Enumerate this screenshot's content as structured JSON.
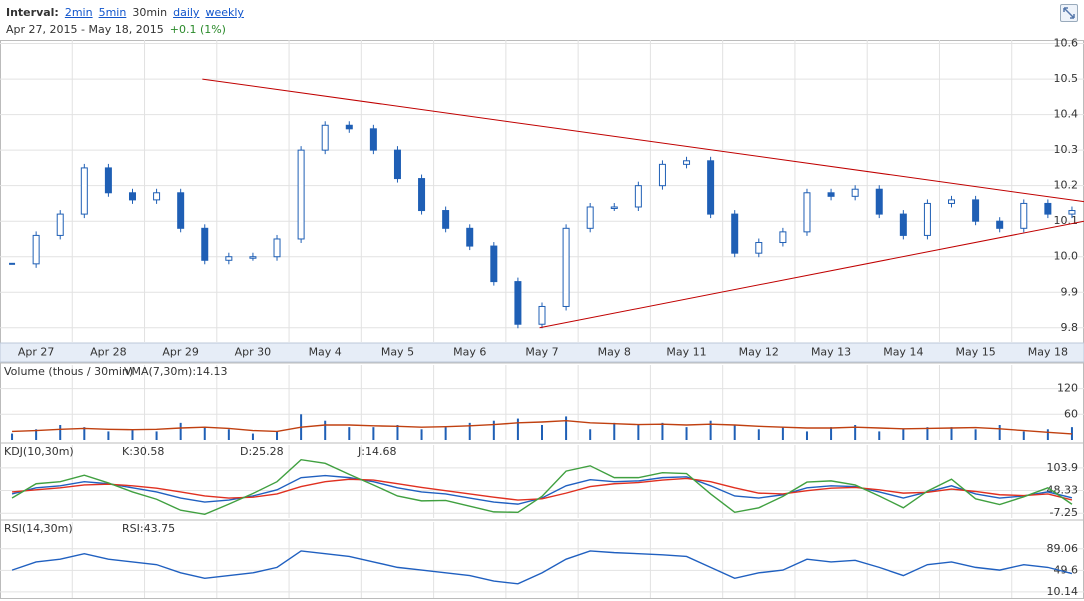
{
  "header": {
    "interval_label": "Interval:",
    "links": [
      "2min",
      "5min"
    ],
    "current": "30min",
    "links2": [
      "daily",
      "weekly"
    ],
    "start": "Apr 27, 2015",
    "sep": "-",
    "end": "May 18, 2015",
    "change": "+0.1 (1%)"
  },
  "chart_data": [
    {
      "type": "candlestick",
      "color": "#1f5fb5",
      "grid": true,
      "categories": [
        null,
        "Apr 27",
        null,
        null,
        "Apr 28",
        null,
        null,
        "Apr 29",
        null,
        null,
        "Apr 30",
        null,
        null,
        "May 4",
        null,
        null,
        "May 5",
        null,
        null,
        "May 6",
        null,
        null,
        "May 7",
        null,
        null,
        "May 8",
        null,
        null,
        "May 11",
        null,
        null,
        "May 12",
        null,
        null,
        "May 13",
        null,
        null,
        "May 14",
        null,
        null,
        "May 15",
        null,
        null,
        "May 18",
        null
      ],
      "values": [
        9.98,
        10.06,
        10.12,
        10.25,
        10.18,
        10.16,
        10.18,
        10.08,
        9.99,
        10.0,
        10.0,
        10.05,
        10.3,
        10.37,
        10.36,
        10.3,
        10.22,
        10.13,
        10.08,
        10.03,
        9.93,
        9.81,
        9.86,
        10.08,
        10.14,
        10.14,
        10.2,
        10.26,
        10.27,
        10.12,
        10.01,
        10.04,
        10.07,
        10.18,
        10.17,
        10.19,
        10.12,
        10.06,
        10.15,
        10.16,
        10.1,
        10.08,
        10.15,
        10.12,
        10.13
      ],
      "ylim": [
        9.76,
        10.61
      ],
      "yticks": [
        9.8,
        9.9,
        {
          "value": 10.0,
          "label": "10.0"
        },
        10.1,
        10.2,
        10.3,
        10.4,
        10.5,
        10.6
      ],
      "trendlines": [
        {
          "color": "#c00000",
          "x": [
            7.9,
            44.5
          ],
          "y": [
            10.5,
            10.155
          ]
        },
        {
          "color": "#c00000",
          "x": [
            21.9,
            44.5
          ],
          "y": [
            9.8,
            10.1
          ]
        }
      ]
    },
    {
      "type": "volume",
      "title": "Volume (thous / 30min)",
      "ylim": [
        0,
        175
      ],
      "yticks": [
        60,
        120
      ],
      "series": [
        {
          "name": "Volume",
          "color": "#1f5fb5",
          "values": [
            15,
            25,
            35,
            30,
            20,
            25,
            20,
            40,
            30,
            25,
            15,
            20,
            60,
            45,
            30,
            30,
            35,
            25,
            30,
            40,
            45,
            50,
            35,
            55,
            25,
            40,
            35,
            40,
            30,
            45,
            35,
            25,
            30,
            20,
            30,
            35,
            20,
            25,
            30,
            30,
            25,
            35,
            20,
            25,
            30
          ]
        },
        {
          "name": "VMA(7,30m):14.13",
          "color": "#c04010",
          "values": [
            20,
            22,
            25,
            27,
            25,
            24,
            25,
            28,
            30,
            27,
            22,
            20,
            30,
            35,
            35,
            33,
            32,
            30,
            31,
            33,
            36,
            40,
            42,
            45,
            40,
            38,
            36,
            37,
            35,
            37,
            35,
            32,
            30,
            28,
            28,
            30,
            28,
            26,
            27,
            28,
            29,
            26,
            22,
            18,
            14.13
          ]
        }
      ]
    },
    {
      "type": "line",
      "title": "KDJ(10,30m)",
      "ylim": [
        -19,
        160
      ],
      "yticks": [
        -7.25,
        48.33,
        103.9
      ],
      "series": [
        {
          "name": "K:30.58",
          "color": "#2060c0",
          "values": [
            40,
            55,
            60,
            70,
            65,
            55,
            45,
            30,
            20,
            25,
            35,
            50,
            80,
            85,
            80,
            70,
            55,
            45,
            40,
            30,
            20,
            15,
            30,
            60,
            75,
            70,
            72,
            80,
            82,
            60,
            35,
            30,
            38,
            55,
            60,
            58,
            45,
            30,
            45,
            60,
            40,
            30,
            35,
            45,
            30.58
          ]
        },
        {
          "name": "D:25.28",
          "color": "#e03020",
          "values": [
            45,
            50,
            55,
            62,
            64,
            60,
            54,
            45,
            35,
            30,
            32,
            40,
            58,
            70,
            76,
            74,
            65,
            56,
            48,
            40,
            32,
            25,
            28,
            42,
            58,
            65,
            68,
            74,
            78,
            70,
            55,
            42,
            40,
            48,
            54,
            56,
            50,
            42,
            44,
            52,
            46,
            38,
            36,
            40,
            25.28
          ]
        },
        {
          "name": "J:14.68",
          "color": "#40a040",
          "values": [
            30,
            65,
            70,
            86,
            67,
            45,
            27,
            0,
            -10,
            15,
            41,
            70,
            124,
            115,
            88,
            62,
            35,
            23,
            24,
            10,
            -4,
            -5,
            34,
            96,
            109,
            80,
            80,
            92,
            90,
            40,
            -5,
            6,
            34,
            69,
            72,
            62,
            35,
            6,
            47,
            76,
            28,
            14,
            33,
            55,
            14.68
          ]
        }
      ]
    },
    {
      "type": "line",
      "title": "RSI(14,30m)",
      "ylim": [
        -1,
        138
      ],
      "yticks": [
        10.14,
        49.6,
        89.06
      ],
      "series": [
        {
          "name": "RSI:43.75",
          "color": "#2060c0",
          "values": [
            50,
            65,
            70,
            80,
            70,
            65,
            60,
            45,
            35,
            40,
            45,
            55,
            85,
            80,
            75,
            65,
            55,
            50,
            45,
            40,
            30,
            25,
            45,
            70,
            85,
            82,
            80,
            78,
            75,
            55,
            35,
            45,
            50,
            70,
            65,
            68,
            55,
            40,
            60,
            65,
            55,
            50,
            60,
            55,
            43.75
          ]
        }
      ]
    }
  ]
}
